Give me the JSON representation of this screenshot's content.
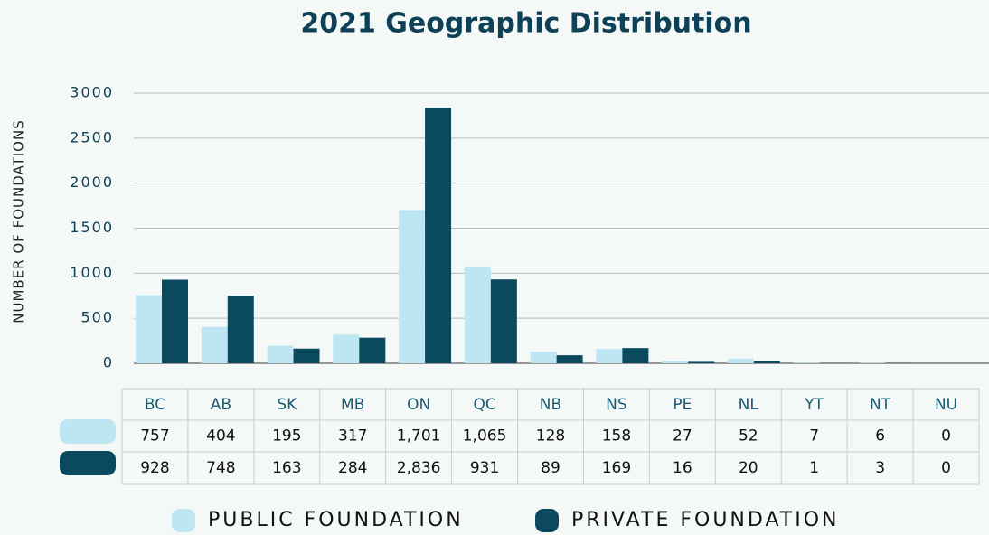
{
  "chart_data": {
    "type": "bar",
    "title": "2021 Geographic Distribution",
    "y_label": "NUMBER OF FOUNDATIONS",
    "categories": [
      "BC",
      "AB",
      "SK",
      "MB",
      "ON",
      "QC",
      "NB",
      "NS",
      "PE",
      "NL",
      "YT",
      "NT",
      "NU"
    ],
    "series": [
      {
        "name": "PUBLIC FOUNDATION",
        "color": "#bde5f2",
        "values": [
          757,
          404,
          195,
          317,
          1701,
          1065,
          128,
          158,
          27,
          52,
          7,
          6,
          0
        ],
        "value_labels": [
          "757",
          "404",
          "195",
          "317",
          "1,701",
          "1,065",
          "128",
          "158",
          "27",
          "52",
          "7",
          "6",
          "0"
        ]
      },
      {
        "name": "PRIVATE FOUNDATION",
        "color": "#0b4a5e",
        "values": [
          928,
          748,
          163,
          284,
          2836,
          931,
          89,
          169,
          16,
          20,
          1,
          3,
          0
        ],
        "value_labels": [
          "928",
          "748",
          "163",
          "284",
          "2,836",
          "931",
          "89",
          "169",
          "16",
          "20",
          "1",
          "3",
          "0"
        ]
      }
    ],
    "ylim": [
      0,
      3000
    ],
    "yticks": [
      0,
      500,
      1000,
      1500,
      2000,
      2500,
      3000
    ],
    "grid": true
  }
}
